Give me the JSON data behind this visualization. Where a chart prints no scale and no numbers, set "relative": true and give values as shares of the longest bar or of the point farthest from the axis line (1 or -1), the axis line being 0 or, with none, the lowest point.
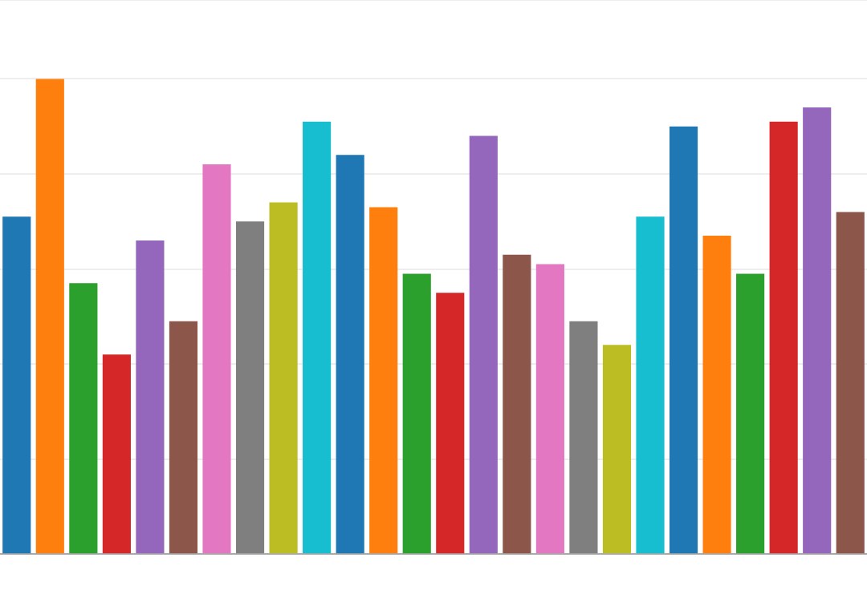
{
  "chart_data": {
    "type": "bar",
    "relative": true,
    "grid": "y",
    "categories": [
      null,
      null,
      null,
      null,
      null,
      null,
      null,
      null,
      null,
      null,
      null,
      null,
      null,
      null,
      null,
      null,
      null,
      null,
      null,
      null,
      null,
      null,
      null,
      null,
      null,
      null
    ],
    "values": [
      0.71,
      1,
      0.57,
      0.42,
      0.66,
      0.49,
      0.82,
      0.7,
      0.74,
      0.91,
      0.84,
      0.73,
      0.59,
      0.55,
      0.88,
      0.63,
      0.61,
      0.49,
      0.44,
      0.71,
      0.9,
      0.67,
      0.59,
      0.91,
      0.94,
      0.72
    ],
    "colors": [
      "#1f77b4",
      "#ff7f0e",
      "#2ca02c",
      "#d62728",
      "#9467bd",
      "#8c564b",
      "#e377c2",
      "#7f7f7f",
      "#bcbd22",
      "#17becf",
      "#1f77b4",
      "#ff7f0e",
      "#2ca02c",
      "#d62728",
      "#9467bd",
      "#8c564b",
      "#e377c2",
      "#7f7f7f",
      "#bcbd22",
      "#17becf",
      "#1f77b4",
      "#ff7f0e",
      "#2ca02c",
      "#d62728",
      "#9467bd",
      "#8c564b"
    ]
  }
}
